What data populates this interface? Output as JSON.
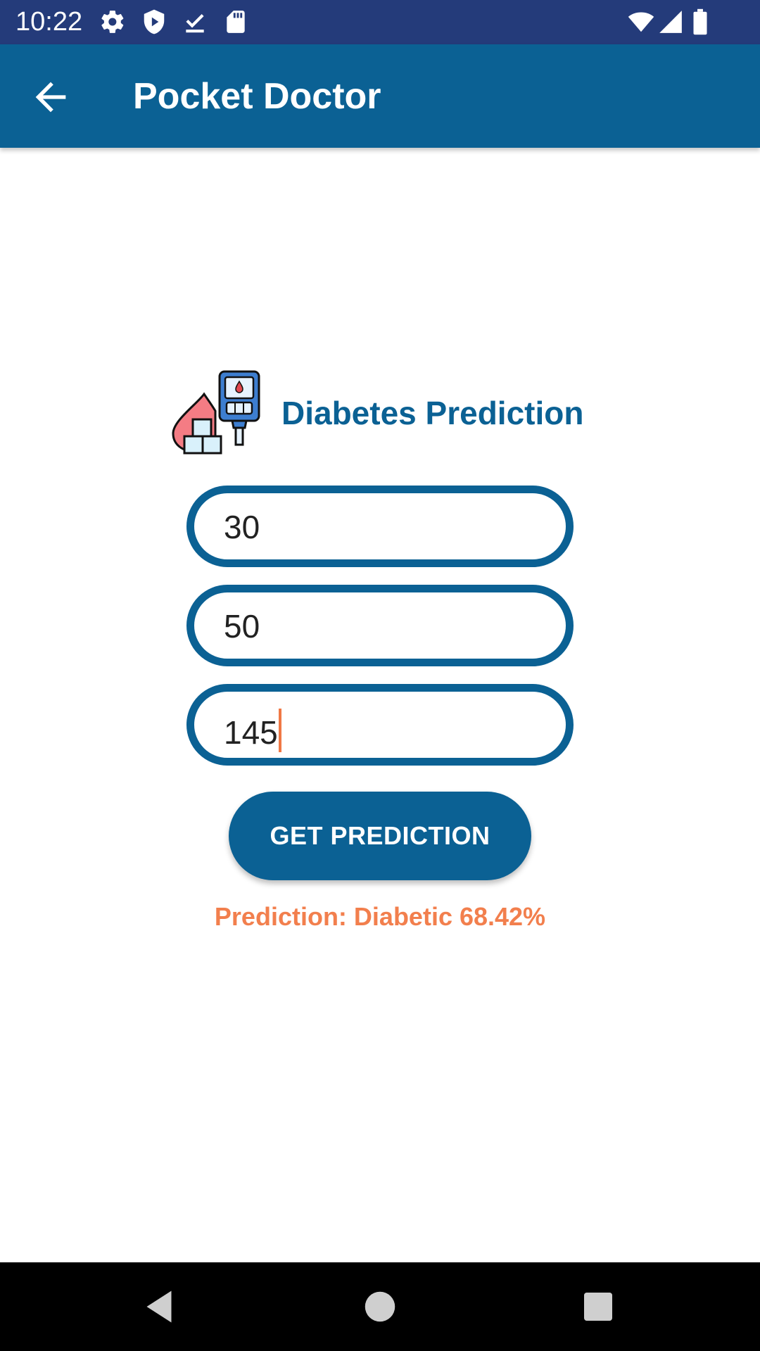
{
  "status_bar": {
    "time": "10:22",
    "icons": [
      "settings-gear-icon",
      "shield-play-icon",
      "download-done-icon",
      "sd-card-icon",
      "wifi-icon",
      "cell-signal-icon",
      "battery-icon"
    ]
  },
  "app_bar": {
    "title": "Pocket Doctor",
    "back_icon": "arrow-back-icon"
  },
  "content": {
    "heading": "Diabetes Prediction",
    "heading_icon": "glucose-meter-icon",
    "fields": [
      {
        "value": "30"
      },
      {
        "value": "50"
      },
      {
        "value": "145",
        "focused": true
      }
    ],
    "button_label": "GET PREDICTION",
    "result_text": "Prediction: Diabetic 68.42%"
  },
  "nav_bar": {
    "icons": [
      "back-triangle-icon",
      "home-circle-icon",
      "recents-square-icon"
    ]
  },
  "colors": {
    "status_bar": "#243b7a",
    "primary": "#0b6194",
    "accent": "#f27f4d",
    "background": "#ffffff"
  }
}
